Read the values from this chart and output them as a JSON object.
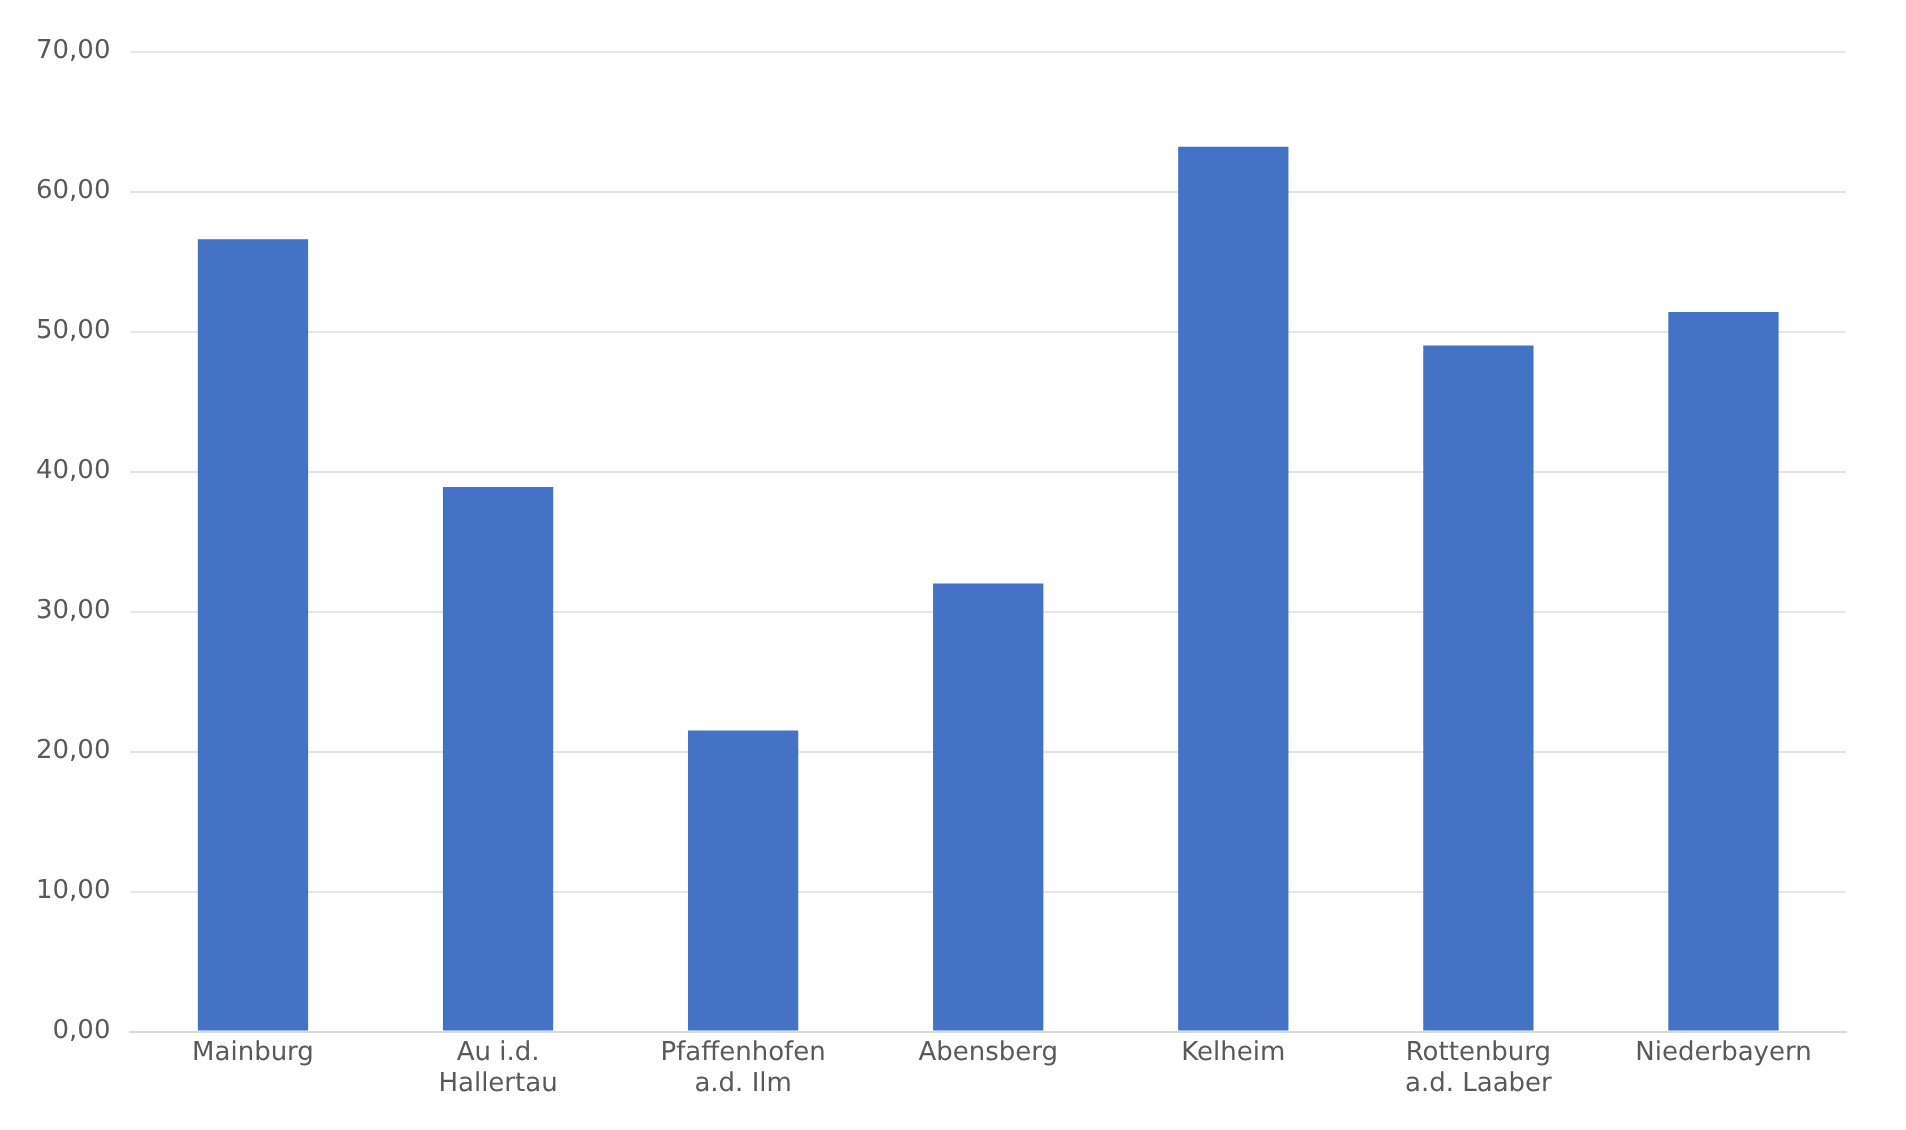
{
  "chart_data": {
    "type": "bar",
    "categories": [
      "Mainburg",
      "Au i.d. Hallertau",
      "Pfaffenhofen a.d. Ilm",
      "Abensberg",
      "Kelheim",
      "Rottenburg a.d. Laaber",
      "Niederbayern"
    ],
    "values": [
      56.6,
      38.9,
      21.5,
      32.0,
      63.2,
      49.0,
      51.4
    ],
    "color": "#4472c4",
    "ylim": [
      0,
      70
    ],
    "yticks": [
      {
        "value": 0,
        "label": "0,00"
      },
      {
        "value": 10,
        "label": "10,00"
      },
      {
        "value": 20,
        "label": "20,00"
      },
      {
        "value": 30,
        "label": "30,00"
      },
      {
        "value": 40,
        "label": "40,00"
      },
      {
        "value": 50,
        "label": "50,00"
      },
      {
        "value": 60,
        "label": "60,00"
      },
      {
        "value": 70,
        "label": "70,00"
      }
    ],
    "grid": "y"
  }
}
